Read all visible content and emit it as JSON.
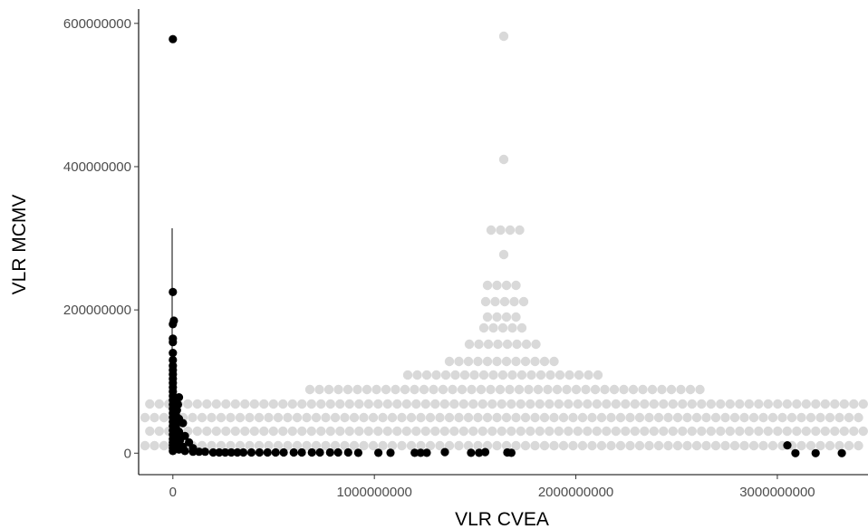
{
  "chart_data": {
    "type": "scatter",
    "xlabel": "VLR CVEA",
    "ylabel": "VLR MCMV",
    "xlim": [
      -170000000,
      3450000000
    ],
    "ylim": [
      -30000000,
      620000000
    ],
    "x_ticks": [
      0,
      1000000000,
      2000000000,
      3000000000
    ],
    "x_tick_labels": [
      "0",
      "1000000000",
      "2000000000",
      "3000000000"
    ],
    "y_ticks": [
      0,
      200000000,
      400000000,
      600000000
    ],
    "y_tick_labels": [
      "0",
      "200000000",
      "400000000",
      "600000000"
    ],
    "grid": false,
    "legend": "none",
    "colors": {
      "points": "#000000",
      "background_dots": "#d9d9d9",
      "axis": "#000000",
      "tick_text": "#4d4d4d"
    },
    "series": [
      {
        "color": "#000000",
        "points": [
          [
            0,
            578000000
          ],
          [
            0,
            225000000
          ],
          [
            5000000,
            185000000
          ],
          [
            0,
            180000000
          ],
          [
            0,
            160000000
          ],
          [
            0,
            155000000
          ],
          [
            0,
            140000000
          ],
          [
            0,
            130000000
          ],
          [
            0,
            122000000
          ],
          [
            0,
            116000000
          ],
          [
            0,
            110000000
          ],
          [
            0,
            104000000
          ],
          [
            0,
            98000000
          ],
          [
            0,
            92000000
          ],
          [
            0,
            86000000
          ],
          [
            0,
            80000000
          ],
          [
            0,
            74000000
          ],
          [
            30000000,
            78000000
          ],
          [
            0,
            68000000
          ],
          [
            25000000,
            68000000
          ],
          [
            0,
            62000000
          ],
          [
            20000000,
            60000000
          ],
          [
            0,
            56000000
          ],
          [
            15000000,
            54000000
          ],
          [
            0,
            50000000
          ],
          [
            30000000,
            48000000
          ],
          [
            0,
            44000000
          ],
          [
            20000000,
            42000000
          ],
          [
            50000000,
            42000000
          ],
          [
            0,
            38000000
          ],
          [
            15000000,
            36000000
          ],
          [
            0,
            32000000
          ],
          [
            30000000,
            30000000
          ],
          [
            0,
            26000000
          ],
          [
            20000000,
            24000000
          ],
          [
            60000000,
            24000000
          ],
          [
            0,
            20000000
          ],
          [
            35000000,
            18000000
          ],
          [
            0,
            15000000
          ],
          [
            80000000,
            15000000
          ],
          [
            0,
            11000000
          ],
          [
            20000000,
            10000000
          ],
          [
            50000000,
            9000000
          ],
          [
            0,
            7000000
          ],
          [
            100000000,
            7000000
          ],
          [
            30000000,
            5000000
          ],
          [
            0,
            3000000
          ],
          [
            60000000,
            3000000
          ],
          [
            100000000,
            2000000
          ],
          [
            130000000,
            2000000
          ],
          [
            160000000,
            2000000
          ],
          [
            200000000,
            1000000
          ],
          [
            230000000,
            1000000
          ],
          [
            260000000,
            1000000
          ],
          [
            290000000,
            1000000
          ],
          [
            320000000,
            1000000
          ],
          [
            350000000,
            1000000
          ],
          [
            390000000,
            1000000
          ],
          [
            430000000,
            1000000
          ],
          [
            470000000,
            1000000
          ],
          [
            510000000,
            1000000
          ],
          [
            550000000,
            1000000
          ],
          [
            600000000,
            1000000
          ],
          [
            640000000,
            1000000
          ],
          [
            690000000,
            1000000
          ],
          [
            730000000,
            1000000
          ],
          [
            780000000,
            1000000
          ],
          [
            820000000,
            1000000
          ],
          [
            870000000,
            1000000
          ],
          [
            920000000,
            500000
          ],
          [
            1020000000,
            500000
          ],
          [
            1080000000,
            500000
          ],
          [
            1200000000,
            500000
          ],
          [
            1230000000,
            500000
          ],
          [
            1260000000,
            500000
          ],
          [
            1350000000,
            1500000
          ],
          [
            1480000000,
            500000
          ],
          [
            1520000000,
            500000
          ],
          [
            1550000000,
            1500000
          ],
          [
            1660000000,
            1000000
          ],
          [
            1680000000,
            500000
          ],
          [
            3050000000,
            11000000
          ],
          [
            3090000000,
            0
          ],
          [
            3190000000,
            0
          ],
          [
            3320000000,
            0
          ]
        ]
      }
    ]
  }
}
